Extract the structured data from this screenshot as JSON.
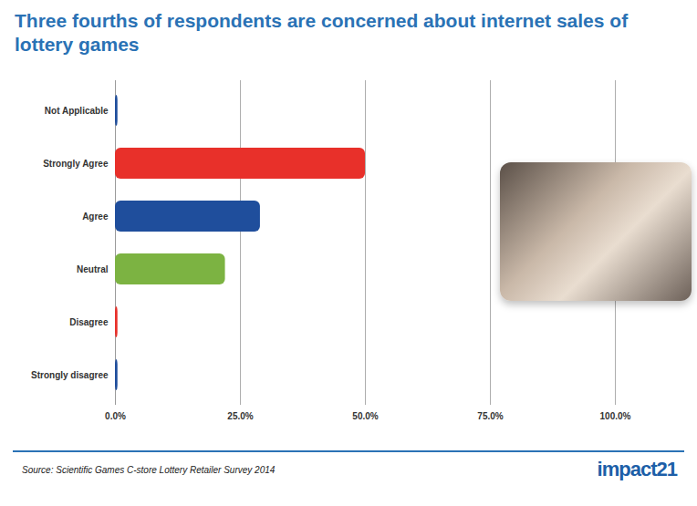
{
  "chart_data": {
    "type": "bar",
    "orientation": "horizontal",
    "title": "Three fourths of respondents are concerned about internet sales of lottery games",
    "categories": [
      "Not Applicable",
      "Strongly Agree",
      "Agree",
      "Neutral",
      "Disagree",
      "Strongly disagree"
    ],
    "values": [
      0.5,
      50,
      29,
      22,
      0.5,
      0.5
    ],
    "colors": [
      "#1f4e9c",
      "#e8302a",
      "#1f4e9c",
      "#7cb342",
      "#e8302a",
      "#1f4e9c"
    ],
    "xlim": [
      0,
      100
    ],
    "xticks": [
      {
        "value": 0,
        "label": "0.0%"
      },
      {
        "value": 25,
        "label": "25.0%"
      },
      {
        "value": 50,
        "label": "50.0%"
      },
      {
        "value": 75,
        "label": "75.0%"
      },
      {
        "value": 100,
        "label": "100.0%"
      }
    ],
    "grid": true,
    "data_labels": false,
    "source": "Source: Scientific Games C-store Lottery Retailer Survey 2014",
    "logo": "impact21"
  }
}
